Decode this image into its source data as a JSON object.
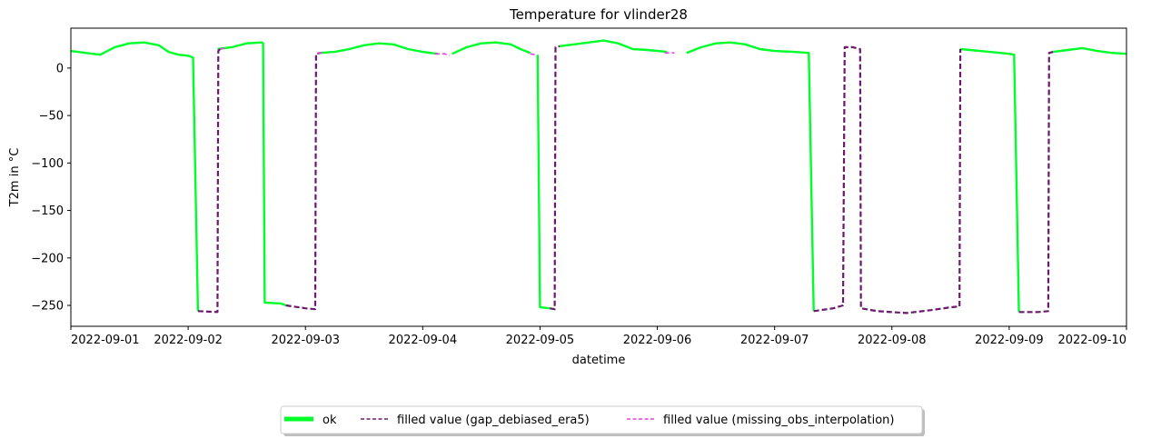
{
  "chart_data": {
    "type": "line",
    "title": "Temperature for vlinder28",
    "xlabel": "datetime",
    "ylabel": "T2m in °C",
    "xlim": [
      "2022-09-01",
      "2022-09-10"
    ],
    "ylim": [
      -272,
      42
    ],
    "x_ticks": [
      "2022-09-01",
      "2022-09-02",
      "2022-09-03",
      "2022-09-04",
      "2022-09-05",
      "2022-09-06",
      "2022-09-07",
      "2022-09-08",
      "2022-09-09",
      "2022-09-10"
    ],
    "y_ticks": [
      0,
      -50,
      -100,
      -150,
      -200,
      -250
    ],
    "grid": false,
    "legend_position": "bottom-center",
    "colors": {
      "ok": "#00ff2a",
      "gap": "#6b1a6b",
      "interp": "#e83ee8"
    },
    "series": [
      {
        "name": "ok",
        "style": "solid",
        "segments": [
          [
            [
              "2022-09-01 00:00",
              18
            ],
            [
              "2022-09-01 03:00",
              16
            ],
            [
              "2022-09-01 06:00",
              14
            ],
            [
              "2022-09-01 09:00",
              22
            ],
            [
              "2022-09-01 12:00",
              26
            ],
            [
              "2022-09-01 15:00",
              27
            ],
            [
              "2022-09-01 18:00",
              24
            ],
            [
              "2022-09-01 20:00",
              17
            ],
            [
              "2022-09-01 22:00",
              14
            ],
            [
              "2022-09-02 00:00",
              13
            ],
            [
              "2022-09-02 01:00",
              11
            ],
            [
              "2022-09-02 02:00",
              -256
            ]
          ],
          [
            [
              "2022-09-02 06:00",
              20
            ],
            [
              "2022-09-02 09:00",
              22
            ],
            [
              "2022-09-02 12:00",
              26
            ],
            [
              "2022-09-02 15:00",
              27
            ],
            [
              "2022-09-02 15:20",
              26
            ],
            [
              "2022-09-02 15:40",
              -247
            ],
            [
              "2022-09-02 19:00",
              -248
            ],
            [
              "2022-09-02 20:00",
              -250
            ]
          ],
          [
            [
              "2022-09-03 03:00",
              16
            ],
            [
              "2022-09-03 06:00",
              17
            ],
            [
              "2022-09-03 09:00",
              20
            ],
            [
              "2022-09-03 12:00",
              24
            ],
            [
              "2022-09-03 15:00",
              26
            ],
            [
              "2022-09-03 18:00",
              25
            ],
            [
              "2022-09-03 21:00",
              20
            ],
            [
              "2022-09-04 00:00",
              17
            ],
            [
              "2022-09-04 03:00",
              15
            ]
          ],
          [
            [
              "2022-09-04 06:00",
              15
            ],
            [
              "2022-09-04 09:00",
              22
            ],
            [
              "2022-09-04 12:00",
              26
            ],
            [
              "2022-09-04 15:00",
              27
            ],
            [
              "2022-09-04 18:00",
              25
            ],
            [
              "2022-09-04 20:00",
              20
            ],
            [
              "2022-09-04 22:00",
              16
            ]
          ],
          [
            [
              "2022-09-04 23:30",
              14
            ],
            [
              "2022-09-05 00:00",
              -252
            ],
            [
              "2022-09-05 02:00",
              -253
            ]
          ],
          [
            [
              "2022-09-05 04:00",
              23
            ],
            [
              "2022-09-05 07:00",
              25
            ],
            [
              "2022-09-05 10:00",
              27
            ],
            [
              "2022-09-05 13:00",
              29
            ],
            [
              "2022-09-05 16:00",
              26
            ],
            [
              "2022-09-05 19:00",
              20
            ],
            [
              "2022-09-05 22:00",
              19
            ],
            [
              "2022-09-06 02:00",
              17
            ]
          ],
          [
            [
              "2022-09-06 06:00",
              16
            ],
            [
              "2022-09-06 09:00",
              22
            ],
            [
              "2022-09-06 12:00",
              26
            ],
            [
              "2022-09-06 15:00",
              27
            ],
            [
              "2022-09-06 18:00",
              25
            ],
            [
              "2022-09-06 21:00",
              20
            ],
            [
              "2022-09-07 00:00",
              18
            ],
            [
              "2022-09-07 04:00",
              17
            ],
            [
              "2022-09-07 07:00",
              16
            ],
            [
              "2022-09-07 08:00",
              -256
            ]
          ],
          [
            [
              "2022-09-08 14:00",
              20
            ],
            [
              "2022-09-08 16:00",
              19
            ],
            [
              "2022-09-08 20:00",
              17
            ],
            [
              "2022-09-09 00:00",
              15
            ],
            [
              "2022-09-09 01:00",
              14
            ],
            [
              "2022-09-09 02:00",
              -257
            ]
          ],
          [
            [
              "2022-09-09 09:00",
              17
            ],
            [
              "2022-09-09 12:00",
              19
            ],
            [
              "2022-09-09 15:00",
              21
            ],
            [
              "2022-09-09 18:00",
              18
            ],
            [
              "2022-09-09 21:00",
              16
            ],
            [
              "2022-09-10 00:00",
              15
            ]
          ]
        ]
      },
      {
        "name": "filled value (gap_debiased_era5)",
        "style": "dashed",
        "segments": [
          [
            [
              "2022-09-02 02:00",
              -256
            ],
            [
              "2022-09-02 06:00",
              -257
            ],
            [
              "2022-09-02 06:10",
              18
            ],
            [
              "2022-09-02 06:30",
              20
            ]
          ],
          [
            [
              "2022-09-02 20:00",
              -250
            ],
            [
              "2022-09-03 00:00",
              -253
            ],
            [
              "2022-09-03 02:00",
              -254
            ],
            [
              "2022-09-03 02:10",
              15
            ],
            [
              "2022-09-03 03:00",
              16
            ]
          ],
          [
            [
              "2022-09-05 02:00",
              -253
            ],
            [
              "2022-09-05 03:00",
              -254
            ],
            [
              "2022-09-05 03:10",
              22
            ],
            [
              "2022-09-05 04:00",
              23
            ]
          ],
          [
            [
              "2022-09-07 08:00",
              -256
            ],
            [
              "2022-09-07 12:00",
              -253
            ],
            [
              "2022-09-07 14:00",
              -250
            ],
            [
              "2022-09-07 14:20",
              22
            ],
            [
              "2022-09-07 16:00",
              22
            ],
            [
              "2022-09-07 17:30",
              20
            ],
            [
              "2022-09-07 17:40",
              -253
            ],
            [
              "2022-09-07 21:00",
              -256
            ],
            [
              "2022-09-08 03:00",
              -258
            ],
            [
              "2022-09-08 08:00",
              -255
            ],
            [
              "2022-09-08 12:00",
              -252
            ],
            [
              "2022-09-08 13:50",
              -251
            ],
            [
              "2022-09-08 14:00",
              20
            ]
          ],
          [
            [
              "2022-09-09 02:00",
              -257
            ],
            [
              "2022-09-09 06:00",
              -257
            ],
            [
              "2022-09-09 08:00",
              -256
            ],
            [
              "2022-09-09 08:10",
              16
            ],
            [
              "2022-09-09 09:00",
              17
            ]
          ]
        ]
      },
      {
        "name": "filled value (missing_obs_interpolation)",
        "style": "dashed",
        "segments": [
          [
            [
              "2022-09-02 06:30",
              20
            ],
            [
              "2022-09-02 07:30",
              21
            ]
          ],
          [
            [
              "2022-09-03 02:30",
              16
            ],
            [
              "2022-09-03 04:00",
              16
            ]
          ],
          [
            [
              "2022-09-04 02:30",
              15
            ],
            [
              "2022-09-04 04:30",
              15
            ],
            [
              "2022-09-04 05:30",
              13
            ]
          ],
          [
            [
              "2022-09-04 22:00",
              15
            ],
            [
              "2022-09-04 23:00",
              14
            ]
          ],
          [
            [
              "2022-09-06 01:30",
              16
            ],
            [
              "2022-09-06 03:30",
              16
            ]
          ]
        ]
      }
    ]
  }
}
